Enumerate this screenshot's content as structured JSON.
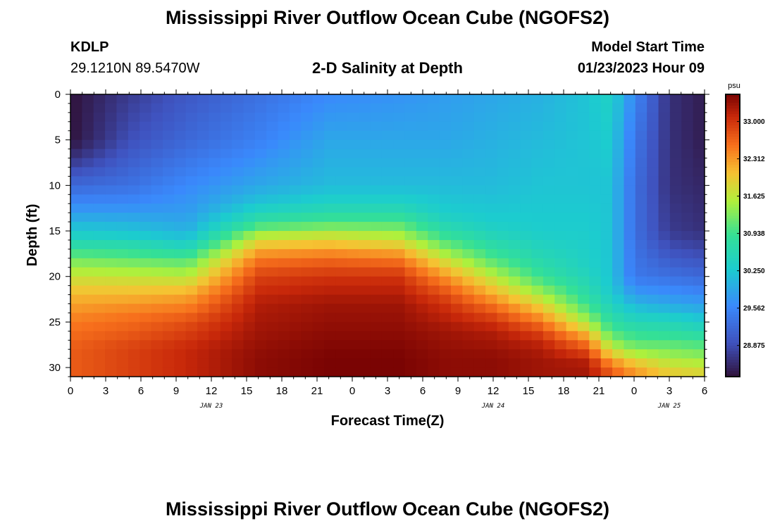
{
  "header": {
    "title": "Mississippi River Outflow Ocean Cube (NGOFS2)",
    "station": "KDLP",
    "coords": "29.1210N  89.5470W",
    "subtitle": "2-D Salinity at Depth",
    "model_start_label": "Model Start Time",
    "model_start_value": "01/23/2023 Hour 09"
  },
  "footer": {
    "title": "Mississippi River Outflow Ocean Cube (NGOFS2)"
  },
  "chart_data": {
    "type": "heatmap",
    "title": "2-D Salinity at Depth",
    "xlabel": "Forecast Time(Z)",
    "ylabel": "Depth (ft)",
    "x_range_hours": [
      0,
      54
    ],
    "ylim": [
      0,
      31
    ],
    "y_inverted": true,
    "x_ticks": [
      "0",
      "3",
      "6",
      "9",
      "12",
      "15",
      "18",
      "21",
      "0",
      "3",
      "6",
      "9",
      "12",
      "15",
      "18",
      "21",
      "0",
      "3",
      "6"
    ],
    "y_ticks": [
      0,
      5,
      10,
      15,
      20,
      25,
      30
    ],
    "date_labels": [
      {
        "label": "JAN 23",
        "at_hour": 12
      },
      {
        "label": "JAN 24",
        "at_hour": 36
      },
      {
        "label": "JAN 25",
        "at_hour": 51
      }
    ],
    "colorbar": {
      "unit": "psu",
      "ticks": [
        "33.000",
        "32.312",
        "31.625",
        "30.938",
        "30.250",
        "29.562",
        "28.875"
      ],
      "tick_values": [
        33.0,
        32.312,
        31.625,
        30.938,
        30.25,
        29.562,
        28.875
      ],
      "range": [
        28.3,
        33.5
      ]
    },
    "salinity_profiles": [
      {
        "hour": 0,
        "depth": [
          0,
          5,
          7,
          10,
          13,
          16,
          18,
          20,
          22,
          25,
          28,
          31
        ],
        "psu": [
          28.3,
          28.3,
          28.6,
          29.2,
          29.8,
          30.5,
          31.2,
          31.7,
          32.1,
          32.5,
          32.7,
          32.7
        ]
      },
      {
        "hour": 5,
        "depth": [
          0,
          5,
          10,
          12,
          14,
          15.5,
          17,
          19,
          21,
          24,
          28,
          31
        ],
        "psu": [
          28.7,
          28.9,
          29.3,
          29.6,
          30.0,
          30.3,
          30.8,
          31.4,
          31.9,
          32.5,
          32.9,
          32.9
        ]
      },
      {
        "hour": 10,
        "depth": [
          0,
          5,
          10,
          13,
          15,
          16.5,
          18,
          20,
          22,
          25,
          28,
          31
        ],
        "psu": [
          29.0,
          29.2,
          29.6,
          29.8,
          30.0,
          30.4,
          31.0,
          31.6,
          32.2,
          32.8,
          33.1,
          33.1
        ]
      },
      {
        "hour": 16,
        "depth": [
          0,
          5,
          10,
          12,
          14,
          16,
          18,
          20,
          23,
          26,
          29,
          31
        ],
        "psu": [
          29.3,
          29.5,
          29.9,
          30.2,
          30.8,
          31.8,
          32.5,
          32.9,
          33.2,
          33.3,
          33.4,
          33.4
        ]
      },
      {
        "hour": 22,
        "depth": [
          0,
          5,
          10,
          12,
          14,
          16,
          18,
          20,
          23,
          26,
          29,
          31
        ],
        "psu": [
          29.6,
          29.9,
          30.1,
          30.4,
          31.0,
          31.9,
          32.6,
          33.0,
          33.3,
          33.4,
          33.5,
          33.5
        ]
      },
      {
        "hour": 28,
        "depth": [
          0,
          5,
          10,
          12,
          14,
          16,
          18,
          20,
          23,
          26,
          29,
          31
        ],
        "psu": [
          29.7,
          29.9,
          30.1,
          30.4,
          31.0,
          31.7,
          32.5,
          33.0,
          33.3,
          33.4,
          33.5,
          33.5
        ]
      },
      {
        "hour": 32,
        "depth": [
          0,
          5,
          10,
          13,
          15,
          17,
          19,
          21,
          23,
          26,
          29,
          31
        ],
        "psu": [
          29.8,
          29.9,
          30.1,
          30.3,
          30.7,
          31.3,
          32.0,
          32.6,
          33.0,
          33.3,
          33.4,
          33.4
        ]
      },
      {
        "hour": 36,
        "depth": [
          0,
          5,
          10,
          14,
          16,
          18,
          20,
          22,
          24,
          26,
          29,
          31
        ],
        "psu": [
          29.9,
          30.0,
          30.1,
          30.3,
          30.6,
          31.0,
          31.6,
          32.2,
          32.8,
          33.2,
          33.4,
          33.4
        ]
      },
      {
        "hour": 40,
        "depth": [
          0,
          5,
          10,
          15,
          18,
          20,
          22,
          24,
          25.5,
          27,
          29,
          31
        ],
        "psu": [
          30.0,
          30.1,
          30.2,
          30.3,
          30.6,
          30.9,
          31.5,
          32.2,
          32.7,
          33.1,
          33.3,
          33.3
        ]
      },
      {
        "hour": 44,
        "depth": [
          0,
          5,
          10,
          15,
          19,
          21,
          23,
          25,
          26.5,
          28,
          29.5,
          31
        ],
        "psu": [
          30.2,
          30.2,
          30.2,
          30.3,
          30.4,
          30.6,
          30.9,
          31.5,
          32.2,
          32.8,
          33.2,
          33.3
        ]
      },
      {
        "hour": 46,
        "depth": [
          0,
          5,
          10,
          15,
          20,
          22,
          24,
          26,
          28,
          29,
          30,
          31
        ],
        "psu": [
          30.4,
          30.3,
          30.2,
          30.2,
          30.2,
          30.3,
          30.6,
          31.0,
          31.7,
          32.2,
          32.6,
          32.8
        ]
      },
      {
        "hour": 48,
        "depth": [
          0,
          5,
          10,
          15,
          20,
          22,
          24,
          26,
          28,
          29,
          30,
          31
        ],
        "psu": [
          29.6,
          29.4,
          29.3,
          29.3,
          29.4,
          29.8,
          30.3,
          30.8,
          31.3,
          31.8,
          32.2,
          32.4
        ]
      },
      {
        "hour": 51,
        "depth": [
          0,
          5,
          10,
          15,
          17,
          20,
          23,
          25,
          27,
          29,
          30,
          31
        ],
        "psu": [
          28.6,
          28.6,
          28.6,
          28.7,
          28.9,
          29.3,
          29.9,
          30.5,
          31.0,
          31.5,
          31.8,
          32.0
        ]
      },
      {
        "hour": 54,
        "depth": [
          0,
          5,
          10,
          15,
          17,
          20,
          23,
          25,
          27,
          29,
          30,
          31
        ],
        "psu": [
          28.4,
          28.4,
          28.5,
          28.6,
          28.8,
          29.2,
          29.8,
          30.3,
          30.9,
          31.4,
          31.7,
          31.9
        ]
      }
    ]
  }
}
